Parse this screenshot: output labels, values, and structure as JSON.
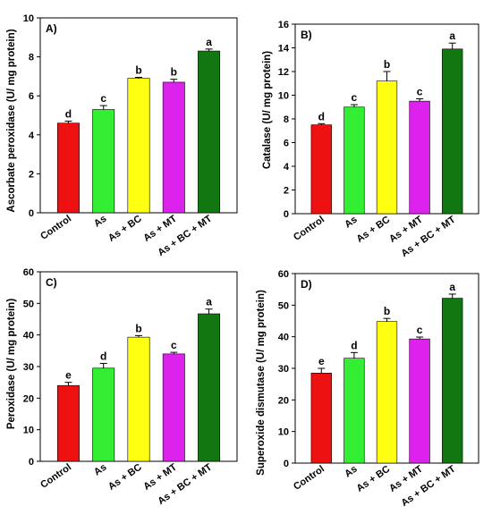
{
  "colors": {
    "control": "#ee1111",
    "as": "#33ee33",
    "as_bc": "#ffff11",
    "as_mt": "#dd22ee",
    "as_bc_mt": "#117711"
  },
  "chart_data": [
    {
      "type": "bar",
      "panel": "A)",
      "ylabel": "Ascorbate peroxidase (U/ mg protein)",
      "categories": [
        "Control",
        "As",
        "As + BC",
        "As + MT",
        "As + BC + MT"
      ],
      "values": [
        4.6,
        5.3,
        6.9,
        6.7,
        8.3
      ],
      "errors": [
        0.1,
        0.2,
        0.05,
        0.15,
        0.1
      ],
      "significance": [
        "d",
        "c",
        "b",
        "b",
        "a"
      ],
      "ylim": [
        0,
        10
      ],
      "yticks": [
        "0",
        "2",
        "4",
        "6",
        "8",
        "10"
      ]
    },
    {
      "type": "bar",
      "panel": "B)",
      "ylabel": "Catalase (U/ mg protein)",
      "categories": [
        "Control",
        "As",
        "As + BC",
        "As + MT",
        "As + BC + MT"
      ],
      "values": [
        7.5,
        9.0,
        11.2,
        9.5,
        13.9
      ],
      "errors": [
        0.1,
        0.2,
        0.8,
        0.2,
        0.5
      ],
      "significance": [
        "d",
        "c",
        "b",
        "c",
        "a"
      ],
      "ylim": [
        0,
        16
      ],
      "yticks": [
        "0",
        "2",
        "4",
        "6",
        "8",
        "10",
        "12",
        "14",
        "16"
      ]
    },
    {
      "type": "bar",
      "panel": "C)",
      "ylabel": "Peroxidase (U/ mg protein)",
      "categories": [
        "Control",
        "As",
        "As + BC",
        "As + MT",
        "As + BC + MT"
      ],
      "values": [
        24,
        29.5,
        39.3,
        34,
        46.7
      ],
      "errors": [
        1.0,
        1.5,
        0.5,
        0.5,
        1.5
      ],
      "significance": [
        "e",
        "d",
        "b",
        "c",
        "a"
      ],
      "ylim": [
        0,
        60
      ],
      "yticks": [
        "0",
        "10",
        "20",
        "30",
        "40",
        "50",
        "60"
      ]
    },
    {
      "type": "bar",
      "panel": "D)",
      "ylabel": "Superoxide dismutase (U/ mg protein)",
      "categories": [
        "Control",
        "As",
        "As + BC",
        "As + MT",
        "As + BC + MT"
      ],
      "values": [
        28.5,
        33.2,
        44.8,
        39.3,
        52.2
      ],
      "errors": [
        1.5,
        1.8,
        1.0,
        0.6,
        1.3
      ],
      "significance": [
        "e",
        "d",
        "b",
        "c",
        "a"
      ],
      "ylim": [
        0,
        60
      ],
      "yticks": [
        "0",
        "10",
        "20",
        "30",
        "40",
        "50",
        "60"
      ]
    }
  ]
}
